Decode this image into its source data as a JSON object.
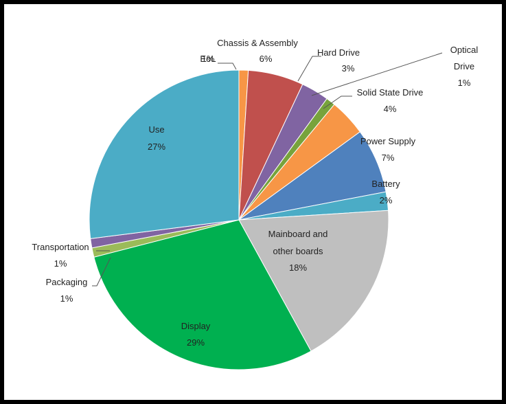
{
  "chart_data": {
    "type": "pie",
    "title": "",
    "legend": "none",
    "slices": [
      {
        "name": "EoL",
        "label": "EoL",
        "value": 1,
        "value_label": "1%",
        "color": "#F79646"
      },
      {
        "name": "Chassis & Assembly",
        "label": "Chassis & Assembly",
        "value": 6,
        "value_label": "6%",
        "color": "#C0504D"
      },
      {
        "name": "Hard Drive",
        "label": "Hard Drive",
        "value": 3,
        "value_label": "3%",
        "color": "#8064A2"
      },
      {
        "name": "Optical Drive",
        "label": "Optical\nDrive",
        "value": 1,
        "value_label": "1%",
        "color": "#77A33C"
      },
      {
        "name": "Solid State Drive",
        "label": "Solid State Drive",
        "value": 4,
        "value_label": "4%",
        "color": "#F79646"
      },
      {
        "name": "Power Supply",
        "label": "Power Supply",
        "value": 7,
        "value_label": "7%",
        "color": "#4F81BD"
      },
      {
        "name": "Battery",
        "label": "Battery",
        "value": 2,
        "value_label": "2%",
        "color": "#4BACC6"
      },
      {
        "name": "Mainboard and other boards",
        "label": "Mainboard and\nother boards",
        "value": 18,
        "value_label": "18%",
        "color": "#BFBFBF"
      },
      {
        "name": "Display",
        "label": "Display",
        "value": 29,
        "value_label": "29%",
        "color": "#00B050"
      },
      {
        "name": "Packaging",
        "label": "Packaging",
        "value": 1,
        "value_label": "1%",
        "color": "#9BBB59"
      },
      {
        "name": "Transportation",
        "label": "Transportation",
        "value": 1,
        "value_label": "1%",
        "color": "#8064A2"
      },
      {
        "name": "Use",
        "label": "Use",
        "value": 27,
        "value_label": "27%",
        "color": "#4BACC6"
      }
    ]
  }
}
